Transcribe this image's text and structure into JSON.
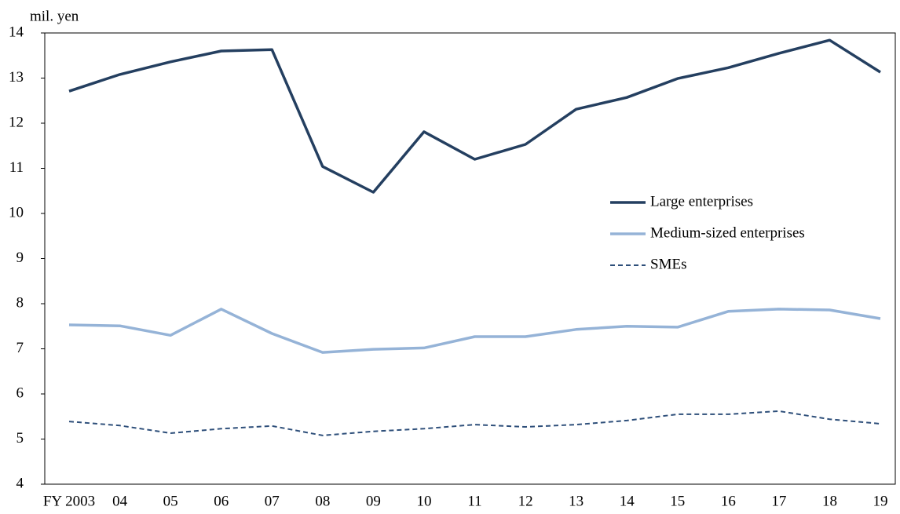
{
  "chart_data": {
    "type": "line",
    "y_label": "mil. yen",
    "categories": [
      "FY 2003",
      "04",
      "05",
      "06",
      "07",
      "08",
      "09",
      "10",
      "11",
      "12",
      "13",
      "14",
      "15",
      "16",
      "17",
      "18",
      "19"
    ],
    "series": [
      {
        "name": "Large enterprises",
        "color": "#243f60",
        "dash": "solid",
        "values": [
          12.71,
          13.08,
          13.36,
          13.6,
          13.63,
          11.04,
          10.47,
          11.81,
          11.2,
          11.53,
          12.31,
          12.57,
          12.99,
          13.23,
          13.55,
          13.84,
          13.13
        ]
      },
      {
        "name": "Medium-sized enterprises",
        "color": "#95b3d7",
        "dash": "solid",
        "values": [
          7.53,
          7.51,
          7.3,
          7.88,
          7.34,
          6.92,
          6.99,
          7.02,
          7.27,
          7.27,
          7.43,
          7.5,
          7.48,
          7.83,
          7.88,
          7.86,
          7.67
        ]
      },
      {
        "name": "SMEs",
        "color": "#2e4f7a",
        "dash": "dashed",
        "values": [
          5.39,
          5.3,
          5.13,
          5.23,
          5.29,
          5.08,
          5.17,
          5.23,
          5.32,
          5.27,
          5.32,
          5.41,
          5.55,
          5.55,
          5.62,
          5.44,
          5.34
        ]
      }
    ],
    "ylim": [
      4,
      14
    ],
    "yticks": [
      4,
      5,
      6,
      7,
      8,
      9,
      10,
      11,
      12,
      13,
      14
    ],
    "grid": false
  }
}
